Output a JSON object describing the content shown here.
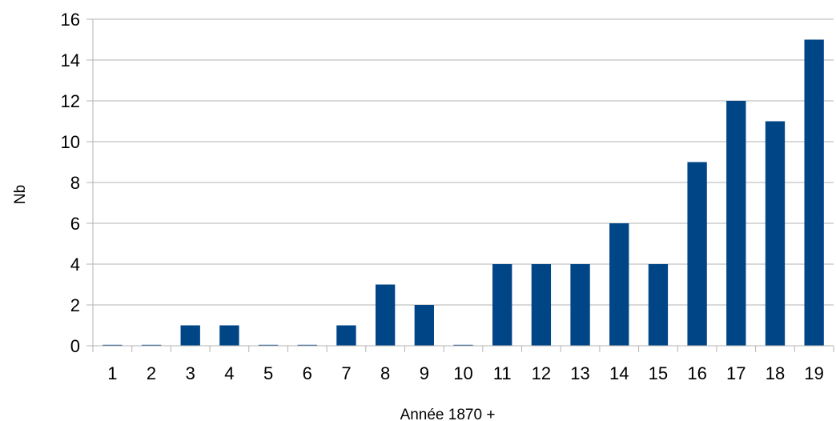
{
  "chart_data": {
    "type": "bar",
    "title": "",
    "xlabel": "Année 1870 +",
    "ylabel": "Nb",
    "categories": [
      "1",
      "2",
      "3",
      "4",
      "5",
      "6",
      "7",
      "8",
      "9",
      "10",
      "11",
      "12",
      "13",
      "14",
      "15",
      "16",
      "17",
      "18",
      "19"
    ],
    "values": [
      0,
      0,
      1,
      1,
      0,
      0,
      1,
      3,
      2,
      0,
      4,
      4,
      4,
      6,
      4,
      9,
      12,
      11,
      15
    ],
    "ylim": [
      0,
      16
    ],
    "yticks": [
      0,
      2,
      4,
      6,
      8,
      10,
      12,
      14,
      16
    ],
    "grid": true,
    "legend": "none",
    "colors": {
      "bar": "#004586",
      "grid": "#b3b3b3",
      "axis": "#b3b3b3",
      "text": "#000000"
    }
  }
}
